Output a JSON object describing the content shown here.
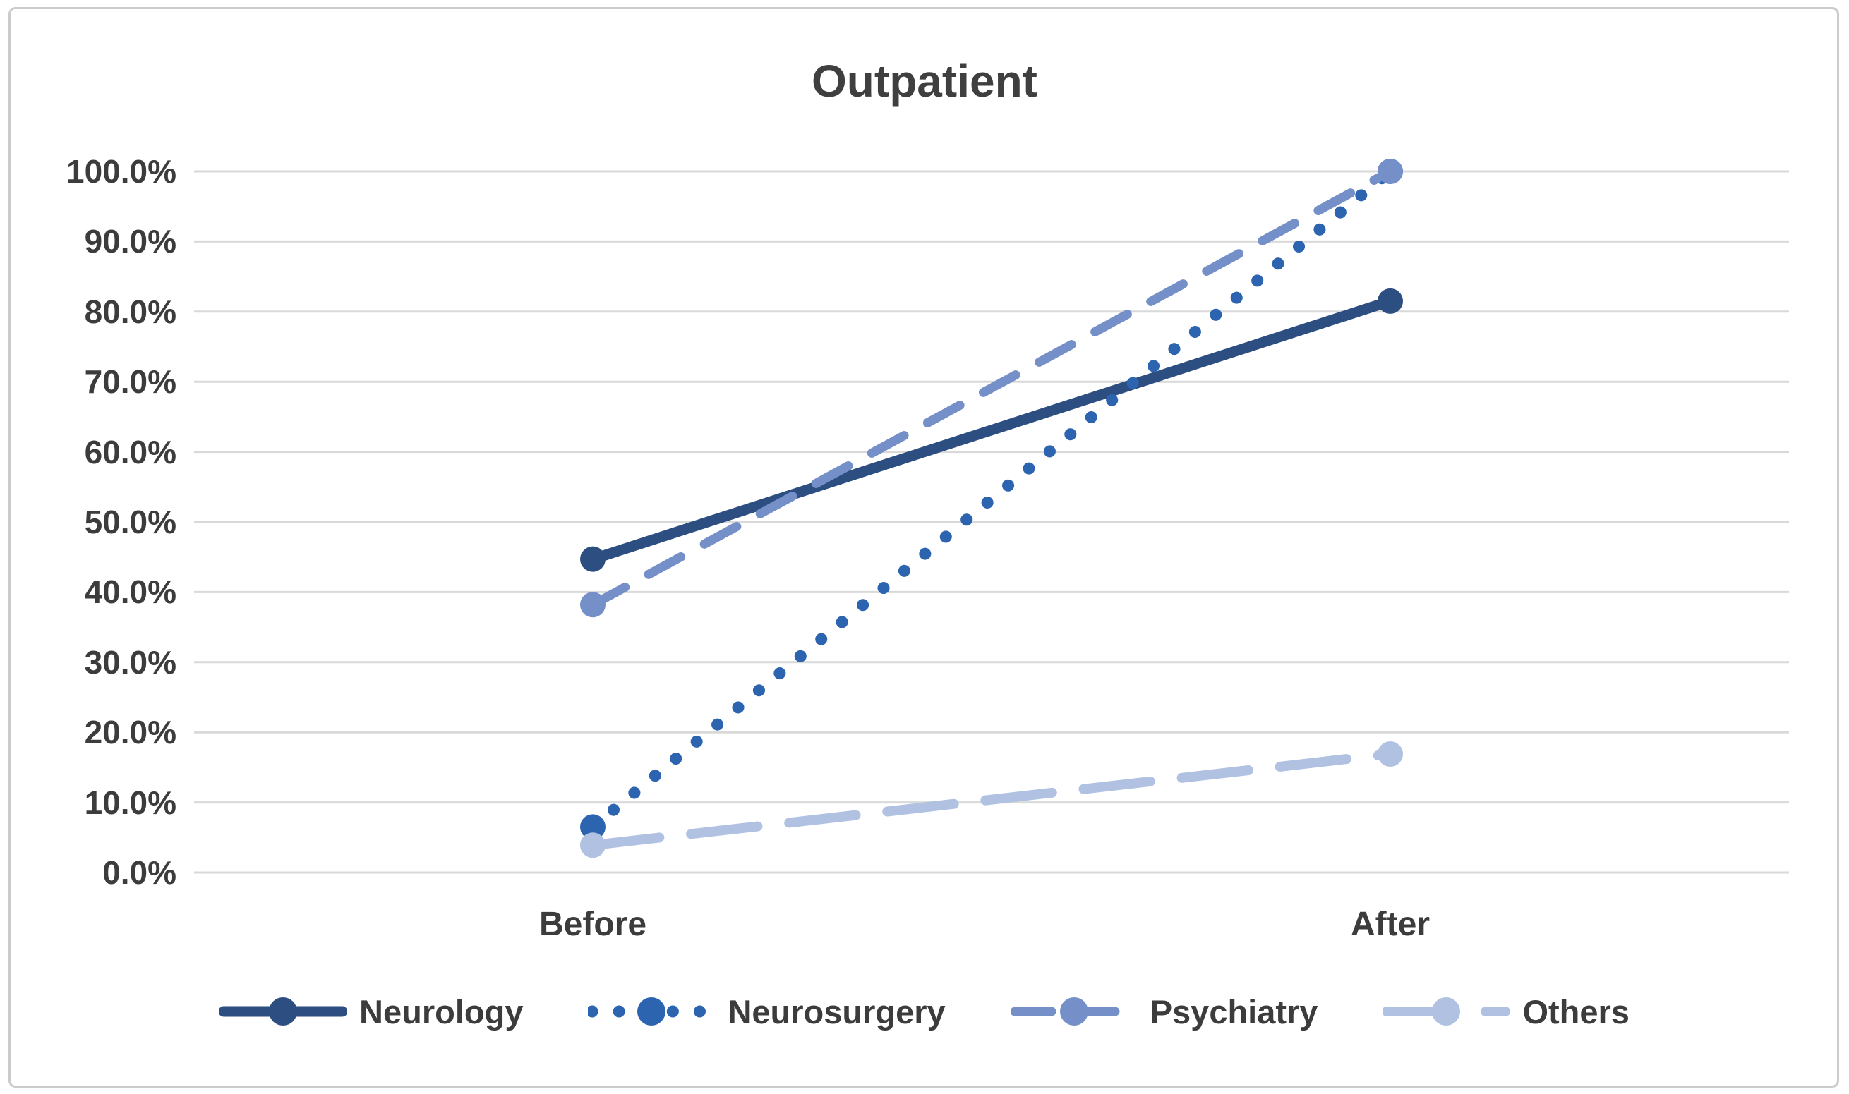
{
  "chart_data": {
    "type": "line",
    "title": "Outpatient",
    "categories": [
      "Before",
      "After"
    ],
    "series": [
      {
        "name": "Neurology",
        "color": "#2C4E80",
        "line_style": "solid",
        "values": [
          44.7,
          81.5
        ]
      },
      {
        "name": "Neurosurgery",
        "color": "#2D64B0",
        "line_style": "dotted",
        "values": [
          6.5,
          100.0
        ]
      },
      {
        "name": "Psychiatry",
        "color": "#7590C8",
        "line_style": "dashed",
        "values": [
          38.2,
          100.0
        ]
      },
      {
        "name": "Others",
        "color": "#B0C1E2",
        "line_style": "long-dash",
        "values": [
          3.9,
          16.9
        ]
      }
    ],
    "xlabel": "",
    "ylabel": "",
    "ylim": [
      0,
      100
    ],
    "y_tick_step": 10,
    "y_ticks": [
      "0.0%",
      "10.0%",
      "20.0%",
      "30.0%",
      "40.0%",
      "50.0%",
      "60.0%",
      "70.0%",
      "80.0%",
      "90.0%",
      "100.0%"
    ],
    "grid": "horizontal",
    "legend_position": "bottom",
    "colors": {
      "gridline": "#D9D9D9",
      "text": "#3C3C3C",
      "title_text": "#3F3F3F",
      "background": "#FFFFFF",
      "border": "#CBCBCB"
    }
  }
}
